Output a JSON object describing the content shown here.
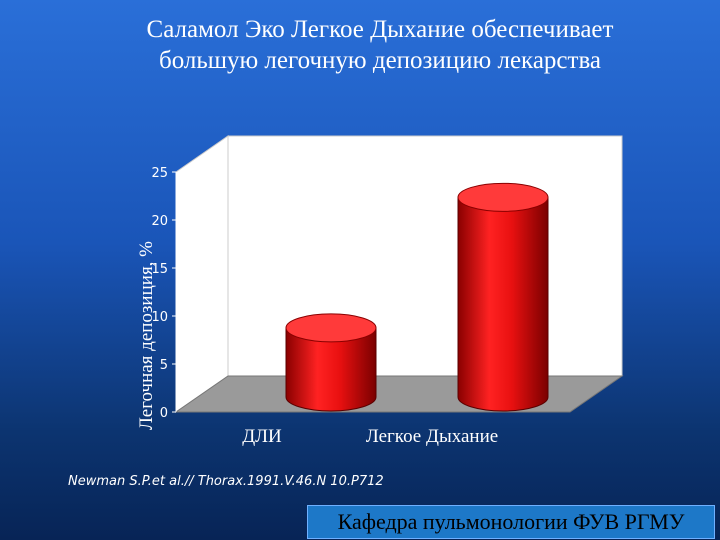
{
  "slide": {
    "title_line1": "Саламол Эко Легкое Дыхание обеспечивает",
    "title_line2": "большую легочную депозицию лекарства",
    "citation": "Newman S.P.et al.// Thorax.1991.V.46.N 10.P712",
    "footer": "Кафедра пульмонологии ФУВ РГМУ"
  },
  "colors": {
    "bar_front": "#e81010",
    "bar_top": "#ff3a3a",
    "wall": "#ffffff",
    "floor": "#9a9a9a",
    "axis_text": "#ffffff",
    "footer_bg": "#1d78c8"
  },
  "chart_data": {
    "type": "bar",
    "style": "3d-cylinder",
    "categories": [
      "ДЛИ",
      "Легкое Дыхание"
    ],
    "values": [
      7.2,
      20.8
    ],
    "value_labels": [
      "7,2",
      "20,8"
    ],
    "ylabel": "Легочная депозиция, %",
    "xlabel": "",
    "ylim": [
      0,
      25
    ],
    "yticks": [
      0,
      5,
      10,
      15,
      20,
      25
    ],
    "grid": false,
    "legend": "none"
  }
}
